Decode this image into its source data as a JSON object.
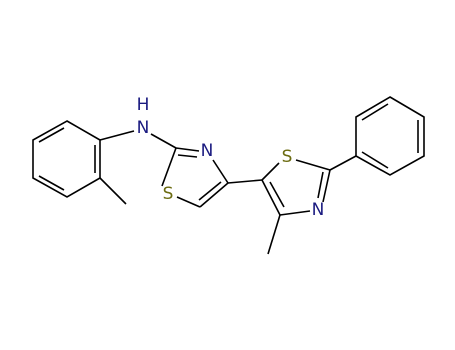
{
  "atoms": [
    {
      "label": "H"
    },
    {
      "label": "N"
    },
    {
      "label": "N"
    },
    {
      "label": "S"
    },
    {
      "label": "S"
    },
    {
      "label": "N"
    }
  ]
}
